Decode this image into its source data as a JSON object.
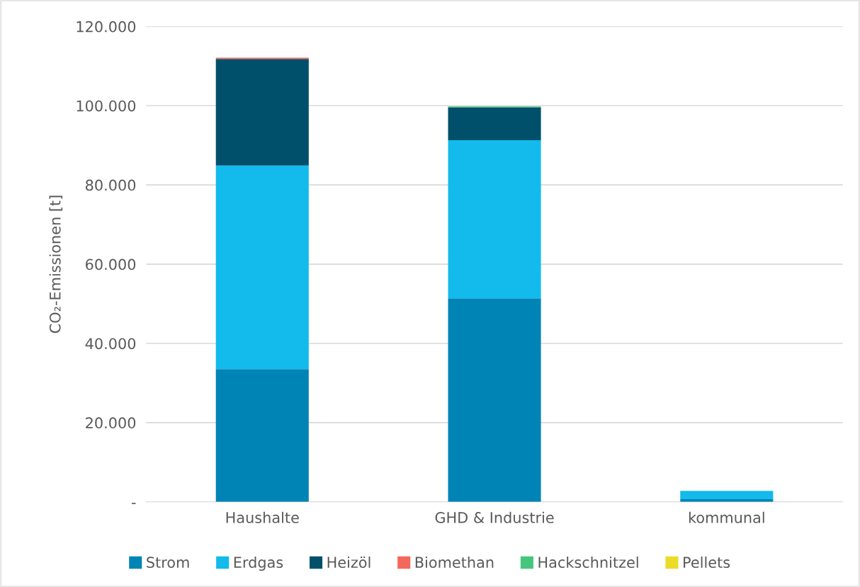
{
  "chart_data": {
    "type": "bar",
    "stacked": true,
    "ylabel": "CO₂-Emissionen [t]",
    "categories": [
      "Haushalte",
      "GHD & Industrie",
      "kommunal"
    ],
    "series": [
      {
        "name": "Strom",
        "color": "#0084b6",
        "values": [
          33500,
          51400,
          700
        ]
      },
      {
        "name": "Erdgas",
        "color": "#13baec",
        "values": [
          51400,
          39900,
          2100
        ]
      },
      {
        "name": "Heizöl",
        "color": "#00506b",
        "values": [
          26900,
          8300,
          0
        ]
      },
      {
        "name": "Biomethan",
        "color": "#f4675b",
        "values": [
          300,
          0,
          0
        ]
      },
      {
        "name": "Hackschnitzel",
        "color": "#46c67d",
        "values": [
          0,
          200,
          0
        ]
      },
      {
        "name": "Pellets",
        "color": "#ecdc27",
        "values": [
          0,
          0,
          0
        ]
      }
    ],
    "ylim": [
      0,
      120000
    ],
    "yticks": [
      {
        "value": 0,
        "label": "-"
      },
      {
        "value": 20000,
        "label": "20.000"
      },
      {
        "value": 40000,
        "label": "40.000"
      },
      {
        "value": 60000,
        "label": "60.000"
      },
      {
        "value": 80000,
        "label": "80.000"
      },
      {
        "value": 100000,
        "label": "100.000"
      },
      {
        "value": 120000,
        "label": "120.000"
      }
    ],
    "grid": "y",
    "legend": "bottom"
  }
}
